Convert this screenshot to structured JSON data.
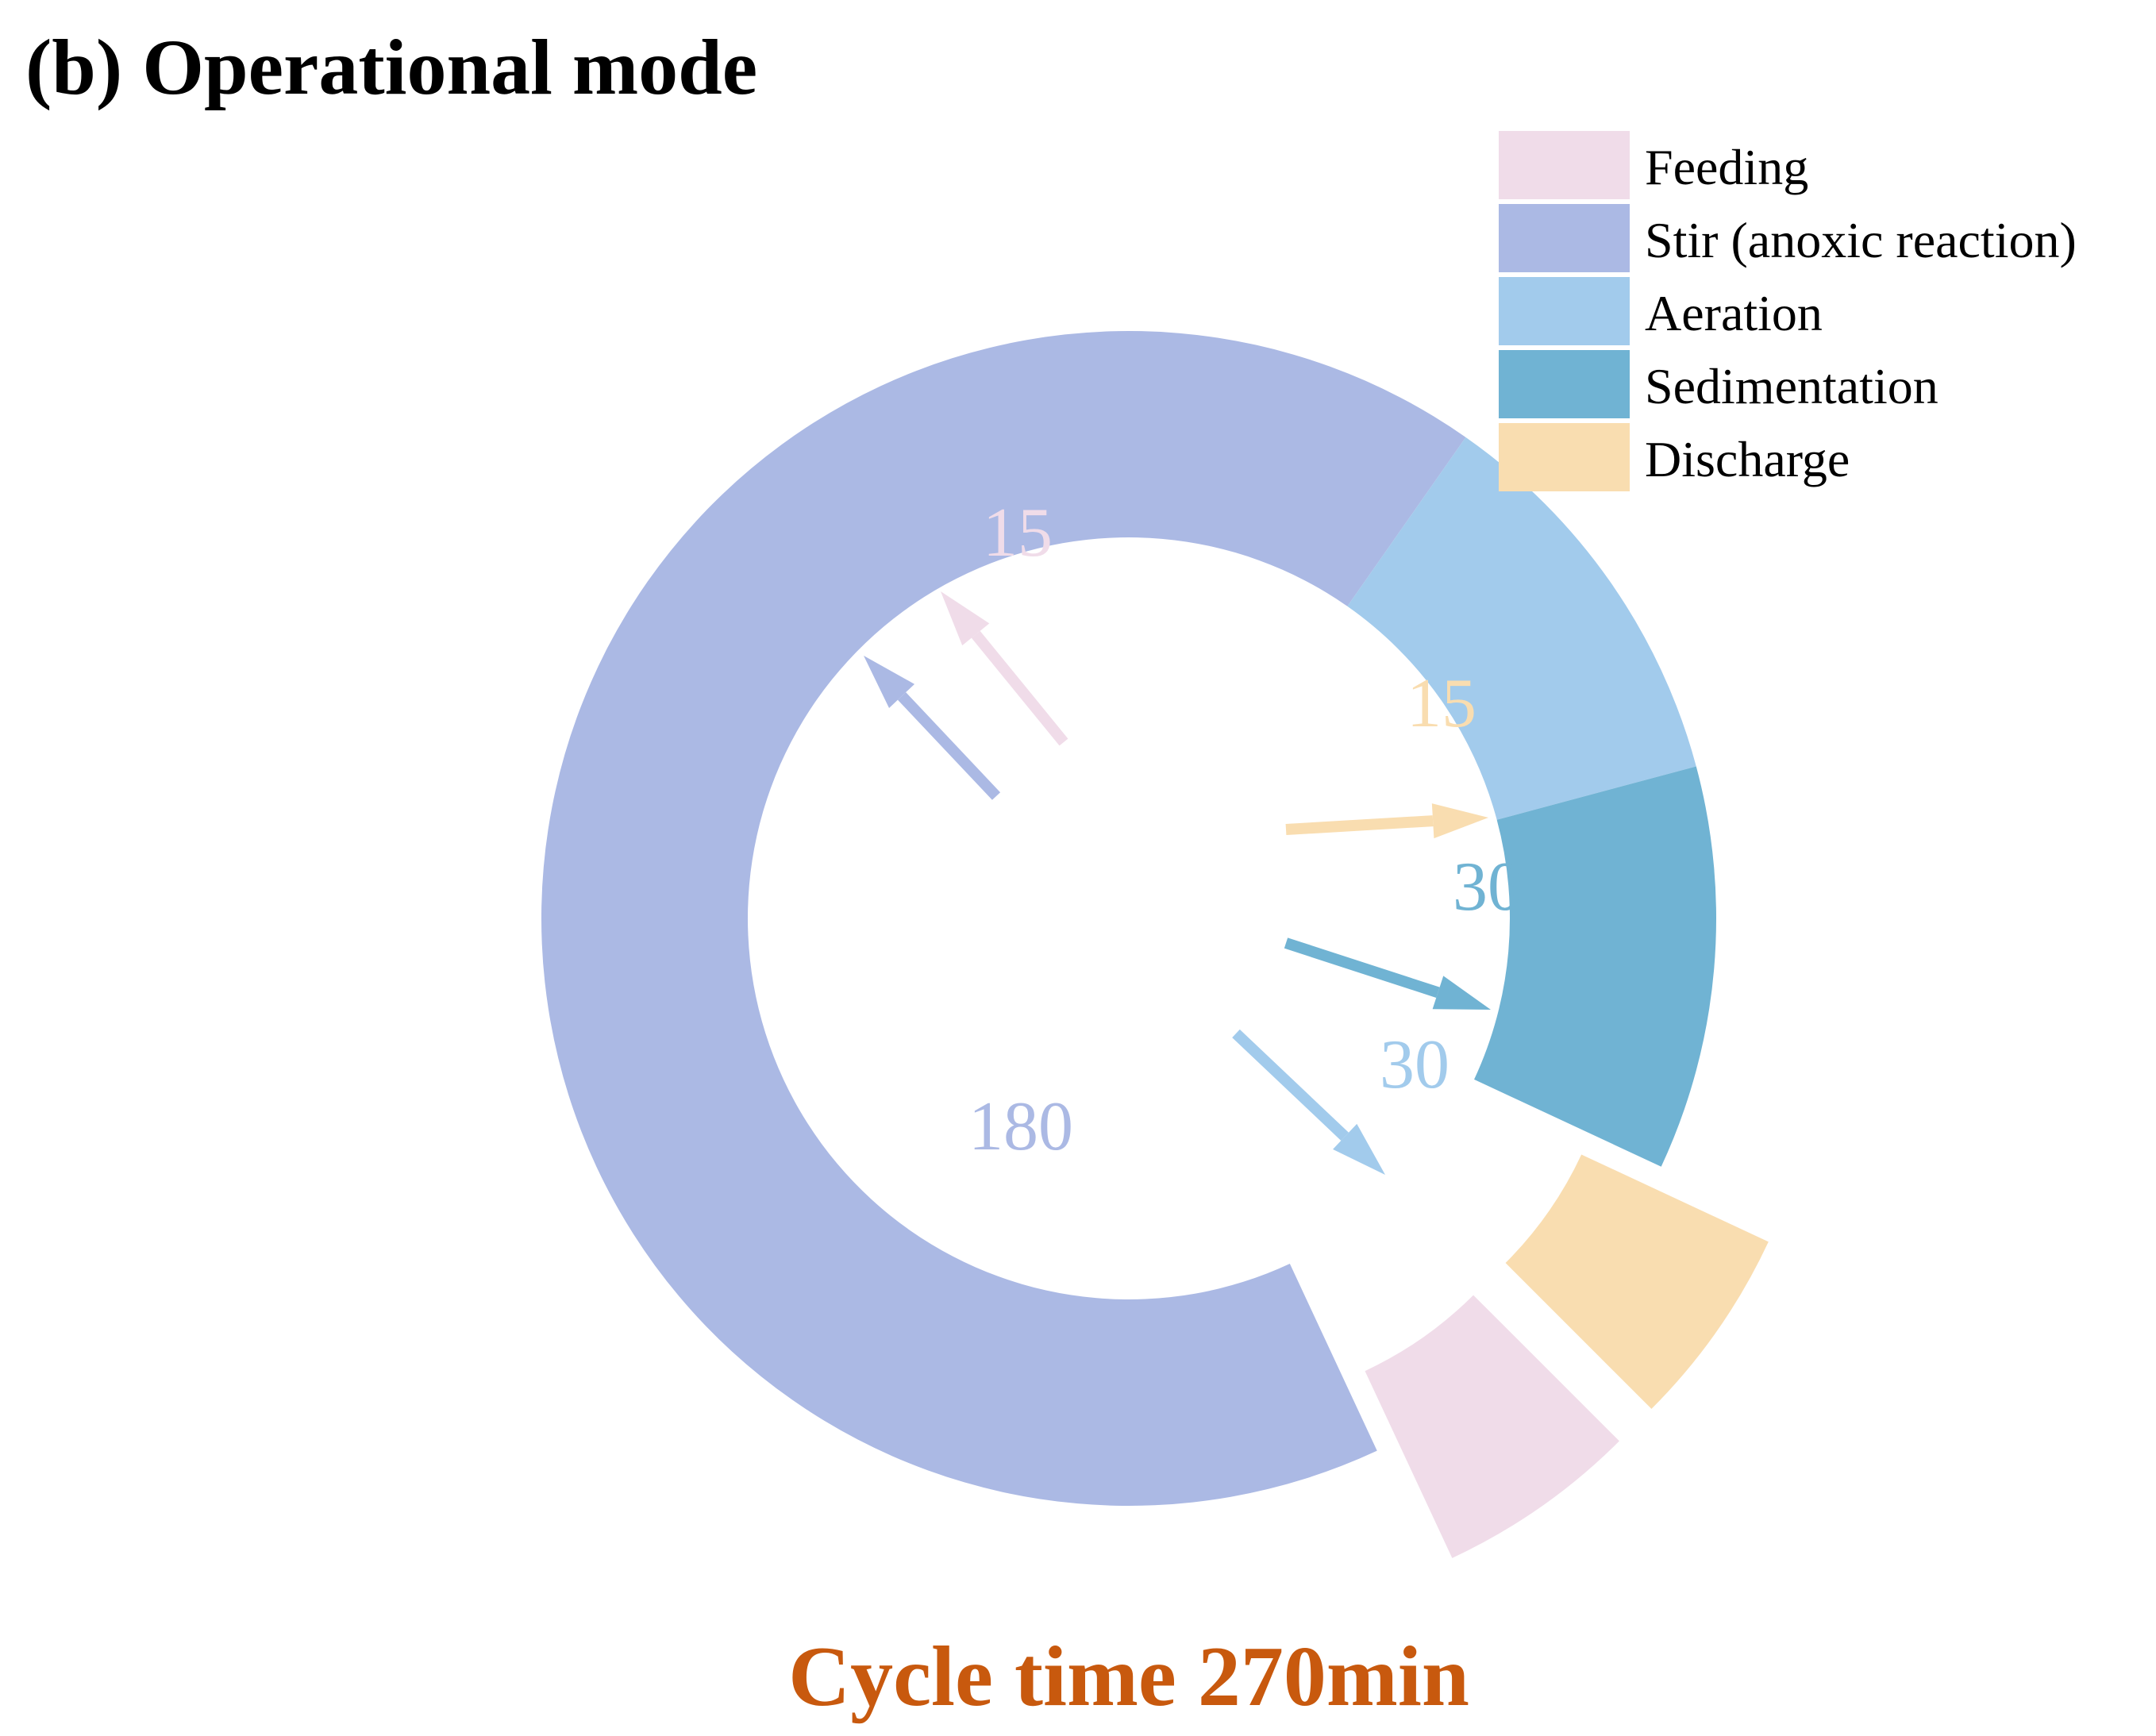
{
  "chart_data": {
    "type": "donut",
    "title": "(b) Operational mode",
    "caption": "Cycle time 270min",
    "unit": "min",
    "total": 270,
    "legend_position": "top-right",
    "series": [
      {
        "name": "Feeding",
        "value": 15,
        "label": "15",
        "color": "#f0dce9",
        "exploded": true
      },
      {
        "name": "Stir (anoxic reaction)",
        "value": 180,
        "label": "180",
        "color": "#abb9e4",
        "exploded": false
      },
      {
        "name": "Aeration",
        "value": 30,
        "label": "30",
        "color": "#a2cbec",
        "exploded": false
      },
      {
        "name": "Sedimentation",
        "value": 30,
        "label": "30",
        "color": "#70b3d3",
        "exploded": false
      },
      {
        "name": "Discharge",
        "value": 15,
        "label": "15",
        "color": "#f9ddb0",
        "exploded": true
      }
    ],
    "title_color": "#000000",
    "caption_color": "#c8590e",
    "legend_text_color": "#000000"
  }
}
